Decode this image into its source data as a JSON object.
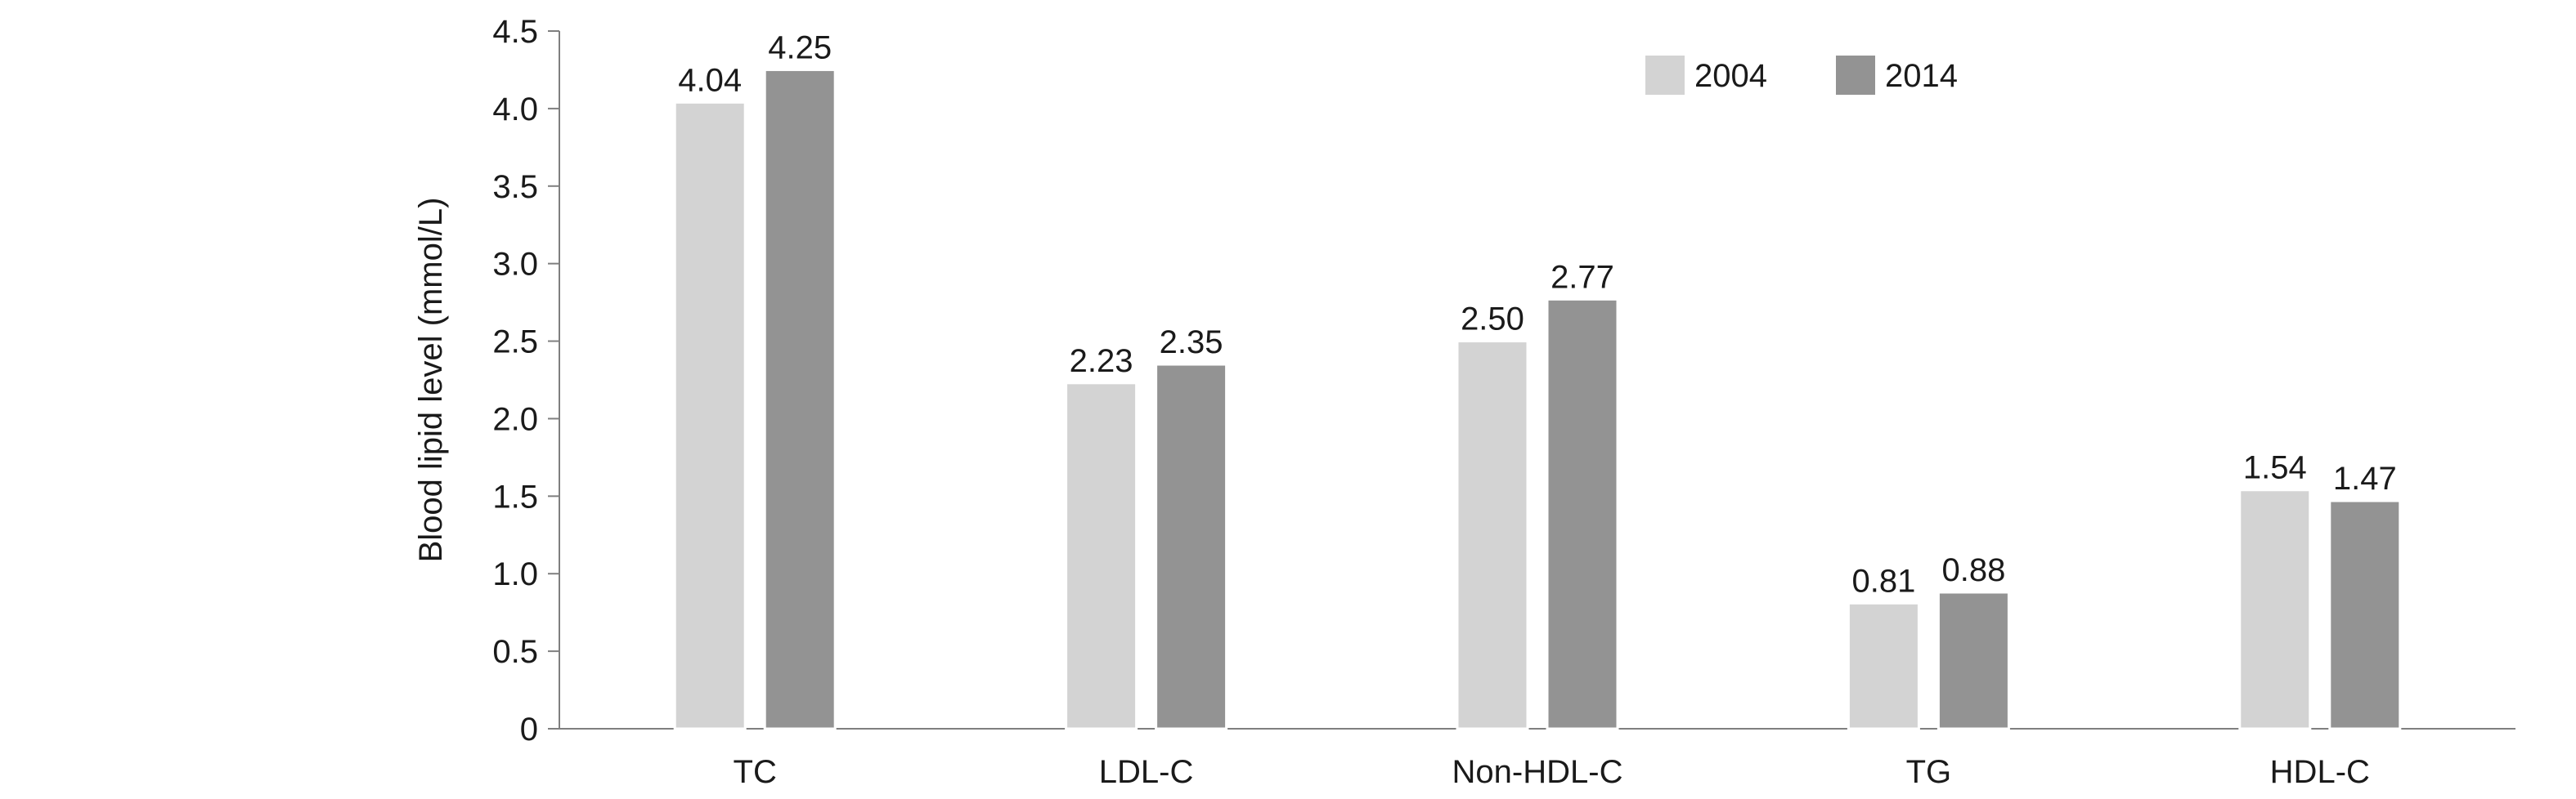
{
  "chart_data": {
    "type": "bar",
    "title": "",
    "xlabel": "",
    "ylabel": "Blood lipid level (mmol/L)",
    "ylim": [
      0,
      4.5
    ],
    "yticks": [
      "0",
      "0.5",
      "1.0",
      "1.5",
      "2.0",
      "2.5",
      "3.0",
      "3.5",
      "4.0",
      "4.5"
    ],
    "ytick_values": [
      0,
      0.5,
      1.0,
      1.5,
      2.0,
      2.5,
      3.0,
      3.5,
      4.0,
      4.5
    ],
    "grid": false,
    "legend_position": "top-right",
    "categories": [
      "TC",
      "LDL-C",
      "Non-HDL-C",
      "TG",
      "HDL-C"
    ],
    "series": [
      {
        "name": "2004",
        "color": "#d3d3d3",
        "values": [
          4.04,
          2.23,
          2.5,
          0.81,
          1.54
        ],
        "labels": [
          "4.04",
          "2.23",
          "2.50",
          "0.81",
          "1.54"
        ]
      },
      {
        "name": "2014",
        "color": "#939393",
        "values": [
          4.25,
          2.35,
          2.77,
          0.88,
          1.47
        ],
        "labels": [
          "4.25",
          "2.35",
          "2.77",
          "0.88",
          "1.47"
        ]
      }
    ]
  }
}
